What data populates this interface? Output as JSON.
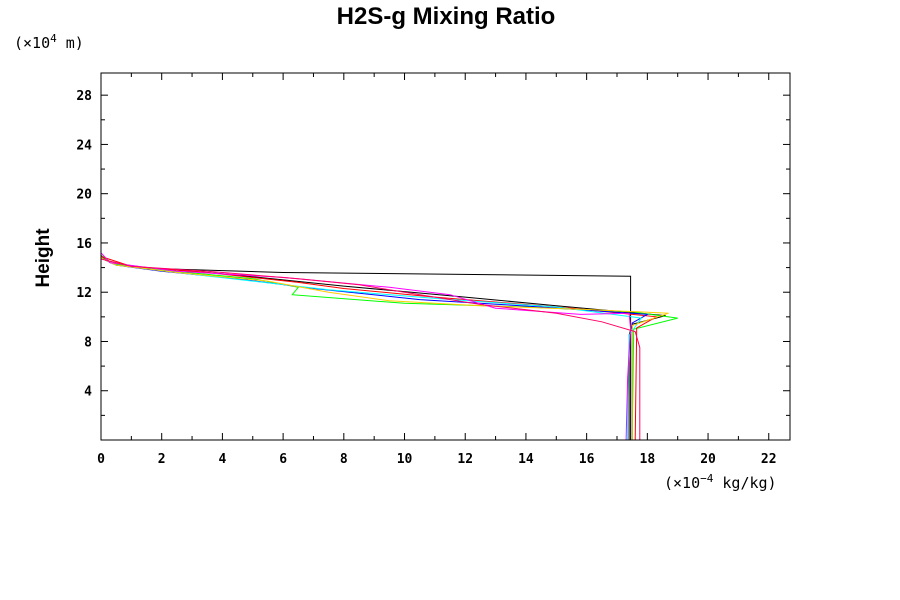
{
  "chart_data": {
    "type": "line",
    "title": "H2S-g Mixing Ratio",
    "ylabel": "Height",
    "xlabel": "",
    "y_unit": {
      "prefix": "(×10",
      "exp": "4",
      "suffix": " m)"
    },
    "x_unit": {
      "prefix": "(×10",
      "exp": "−4",
      "suffix": " kg/kg)"
    },
    "xlim": [
      0,
      22.7
    ],
    "ylim": [
      0,
      29.8
    ],
    "xticks": [
      0,
      2,
      4,
      6,
      8,
      10,
      12,
      14,
      16,
      18,
      20,
      22
    ],
    "yticks": [
      4,
      8,
      12,
      16,
      20,
      24,
      28
    ],
    "grid": false,
    "series": [
      {
        "color": "#000000",
        "points": [
          [
            17.45,
            0
          ],
          [
            17.45,
            8.0
          ],
          [
            17.45,
            13.3
          ],
          [
            6.0,
            13.6
          ],
          [
            2.0,
            13.9
          ],
          [
            0.5,
            14.2
          ],
          [
            0.15,
            14.6
          ],
          [
            0,
            15.0
          ]
        ]
      },
      {
        "color": "#000000",
        "points": [
          [
            17.4,
            0
          ],
          [
            17.4,
            8.5
          ],
          [
            17.5,
            9.4
          ],
          [
            18.6,
            10.1
          ],
          [
            15.0,
            10.9
          ],
          [
            12.0,
            11.6
          ],
          [
            8.0,
            12.5
          ],
          [
            4.0,
            13.5
          ],
          [
            1.5,
            14.0
          ],
          [
            0.3,
            14.4
          ],
          [
            0,
            15.0
          ]
        ]
      },
      {
        "color": "#00ff00",
        "points": [
          [
            17.5,
            0
          ],
          [
            17.55,
            9.0
          ],
          [
            19.0,
            9.9
          ],
          [
            17.5,
            10.4
          ],
          [
            14.0,
            10.8
          ],
          [
            10.0,
            11.1
          ],
          [
            6.3,
            11.8
          ],
          [
            6.5,
            12.4
          ],
          [
            5.0,
            13.1
          ],
          [
            2.0,
            13.8
          ],
          [
            0.4,
            14.3
          ],
          [
            0,
            15.0
          ]
        ]
      },
      {
        "color": "#ff0000",
        "points": [
          [
            17.6,
            0
          ],
          [
            17.65,
            9.1
          ],
          [
            18.3,
            10.0
          ],
          [
            15.5,
            10.7
          ],
          [
            11.0,
            11.6
          ],
          [
            8.0,
            12.3
          ],
          [
            6.5,
            12.8
          ],
          [
            3.5,
            13.6
          ],
          [
            1.0,
            14.1
          ],
          [
            0,
            14.9
          ]
        ]
      },
      {
        "color": "#0000ff",
        "points": [
          [
            17.5,
            0
          ],
          [
            17.5,
            9.5
          ],
          [
            18.0,
            10.2
          ],
          [
            14.5,
            10.8
          ],
          [
            10.5,
            11.4
          ],
          [
            7.0,
            12.3
          ],
          [
            4.5,
            13.1
          ],
          [
            2.0,
            13.7
          ],
          [
            0.5,
            14.2
          ],
          [
            0,
            14.8
          ]
        ]
      },
      {
        "color": "#00ffff",
        "points": [
          [
            17.35,
            0
          ],
          [
            17.35,
            3.5
          ],
          [
            17.4,
            8.5
          ],
          [
            17.8,
            9.9
          ],
          [
            15.0,
            10.8
          ],
          [
            11.0,
            11.5
          ],
          [
            7.5,
            12.2
          ],
          [
            5.0,
            12.9
          ],
          [
            2.5,
            13.6
          ],
          [
            0.5,
            14.2
          ],
          [
            0,
            14.8
          ]
        ]
      },
      {
        "color": "#ffcc00",
        "points": [
          [
            17.5,
            0
          ],
          [
            17.5,
            9.3
          ],
          [
            18.7,
            10.3
          ],
          [
            16.0,
            10.6
          ],
          [
            12.5,
            10.9
          ],
          [
            9.5,
            11.3
          ],
          [
            7.5,
            12.0
          ],
          [
            5.5,
            12.9
          ],
          [
            2.5,
            13.6
          ],
          [
            0.5,
            14.2
          ],
          [
            0,
            14.8
          ]
        ]
      },
      {
        "color": "#ff00ff",
        "points": [
          [
            17.3,
            0
          ],
          [
            17.35,
            5.0
          ],
          [
            17.45,
            9.0
          ],
          [
            17.4,
            10.3
          ],
          [
            15.8,
            10.2
          ],
          [
            13.0,
            10.7
          ],
          [
            11.5,
            11.8
          ],
          [
            9.5,
            12.4
          ],
          [
            6.0,
            13.2
          ],
          [
            2.5,
            13.7
          ],
          [
            0.3,
            14.4
          ],
          [
            0,
            15.2
          ],
          [
            0,
            29.8
          ]
        ]
      },
      {
        "color": "#ff0066",
        "points": [
          [
            17.75,
            0
          ],
          [
            17.75,
            7.5
          ],
          [
            17.6,
            8.8
          ],
          [
            16.5,
            9.6
          ],
          [
            15.0,
            10.3
          ],
          [
            12.5,
            11.0
          ],
          [
            10.0,
            12.0
          ],
          [
            8.5,
            12.6
          ],
          [
            6.5,
            13.1
          ],
          [
            3.5,
            13.7
          ],
          [
            1.0,
            14.1
          ],
          [
            0,
            14.7
          ]
        ]
      }
    ]
  }
}
